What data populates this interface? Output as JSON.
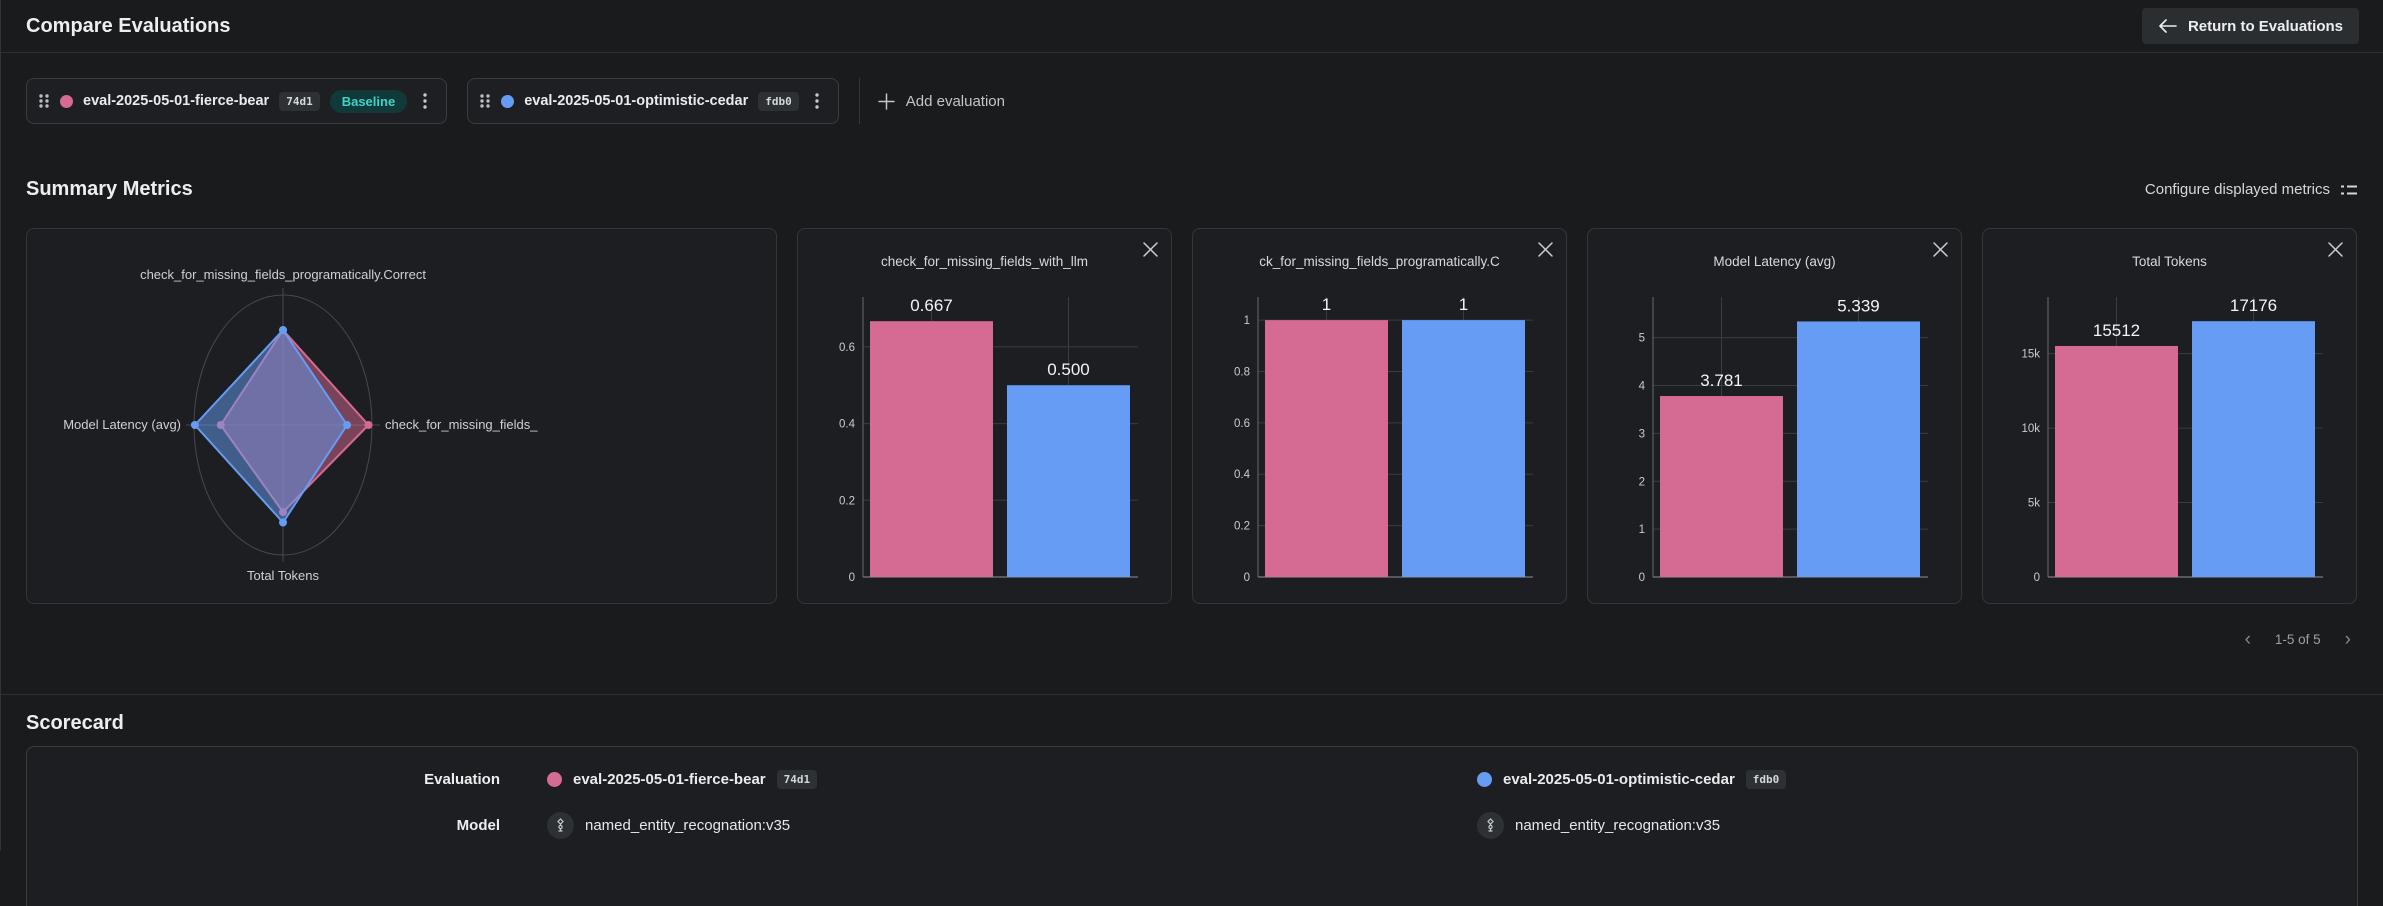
{
  "colors": {
    "pink": "#d56a92",
    "blue": "#669cf4",
    "baseline_badge_bg": "#11393a",
    "baseline_badge_text": "#3fd4c6",
    "grid_line": "#3a3d40",
    "axis_line": "#696c6f"
  },
  "header": {
    "title": "Compare Evaluations",
    "return_button_label": "Return to Evaluations"
  },
  "toolbar": {
    "add_evaluation_label": "Add evaluation"
  },
  "evaluations": [
    {
      "name": "eval-2025-05-01-fierce-bear",
      "short_id": "74d1",
      "baseline_label": "Baseline",
      "color": "#d56a92"
    },
    {
      "name": "eval-2025-05-01-optimistic-cedar",
      "short_id": "fdb0",
      "color": "#669cf4"
    }
  ],
  "summary_metrics": {
    "title": "Summary Metrics",
    "configure_label": "Configure displayed metrics",
    "pagination": {
      "range_label": "1-5 of 5",
      "prev": "‹",
      "next": "›"
    }
  },
  "scorecard": {
    "title": "Scorecard",
    "row_labels": {
      "evaluation": "Evaluation",
      "model": "Model"
    },
    "models": [
      "named_entity_recognation:v35",
      "named_entity_recognation:v35"
    ]
  },
  "chart_data": [
    {
      "type": "radar",
      "axes": [
        "check_for_missing_fields_programatically.Correct",
        "check_for_missing_fields_",
        "Total Tokens",
        "Model Latency (avg)"
      ],
      "series": [
        {
          "name": "eval-2025-05-01-fierce-bear",
          "color": "#d56a92",
          "radii": [
            0.73,
            0.96,
            0.67,
            0.7
          ]
        },
        {
          "name": "eval-2025-05-01-optimistic-cedar",
          "color": "#669cf4",
          "radii": [
            0.73,
            0.72,
            0.75,
            0.99
          ]
        }
      ]
    },
    {
      "type": "bar",
      "title": "check_for_missing_fields_with_llm",
      "categories": [
        "eval-2025-05-01-fierce-bear",
        "eval-2025-05-01-optimistic-cedar"
      ],
      "values": [
        0.667,
        0.5
      ],
      "value_labels": [
        "0.667",
        "0.500"
      ],
      "yticks": [
        0,
        0.2,
        0.4,
        0.6
      ],
      "ytick_labels": [
        "0",
        "0.2",
        "0.4",
        "0.6"
      ],
      "ylim": [
        0,
        0.73
      ]
    },
    {
      "type": "bar",
      "title": "ck_for_missing_fields_programatically.C",
      "categories": [
        "eval-2025-05-01-fierce-bear",
        "eval-2025-05-01-optimistic-cedar"
      ],
      "values": [
        1,
        1
      ],
      "value_labels": [
        "1",
        "1"
      ],
      "yticks": [
        0,
        0.2,
        0.4,
        0.6,
        0.8,
        1
      ],
      "ytick_labels": [
        "0",
        "0.2",
        "0.4",
        "0.6",
        "0.8",
        "1"
      ],
      "ylim": [
        0,
        1.09
      ]
    },
    {
      "type": "bar",
      "title": "Model Latency (avg)",
      "categories": [
        "eval-2025-05-01-fierce-bear",
        "eval-2025-05-01-optimistic-cedar"
      ],
      "values": [
        3.781,
        5.339
      ],
      "value_labels": [
        "3.781",
        "5.339"
      ],
      "yticks": [
        0,
        1,
        2,
        3,
        4,
        5
      ],
      "ytick_labels": [
        "0",
        "1",
        "2",
        "3",
        "4",
        "5"
      ],
      "ylim": [
        0,
        5.85
      ]
    },
    {
      "type": "bar",
      "title": "Total Tokens",
      "categories": [
        "eval-2025-05-01-fierce-bear",
        "eval-2025-05-01-optimistic-cedar"
      ],
      "values": [
        15512,
        17176
      ],
      "value_labels": [
        "15512",
        "17176"
      ],
      "yticks": [
        0,
        5000,
        10000,
        15000
      ],
      "ytick_labels": [
        "0",
        "5k",
        "10k",
        "15k"
      ],
      "ylim": [
        0,
        18800
      ]
    }
  ]
}
